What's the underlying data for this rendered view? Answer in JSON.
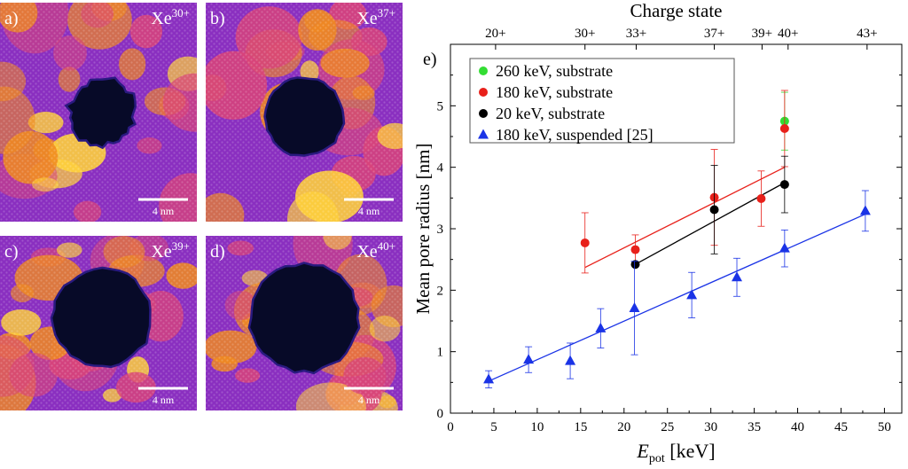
{
  "panels": [
    {
      "label": "a)",
      "ion": "Xe",
      "charge": "30+",
      "scalebar": "4 nm",
      "hole": "rough"
    },
    {
      "label": "b)",
      "ion": "Xe",
      "charge": "37+",
      "scalebar": "4 nm",
      "hole": "round"
    },
    {
      "label": "c)",
      "ion": "Xe",
      "charge": "39+",
      "scalebar": "4 nm",
      "hole": "large"
    },
    {
      "label": "d)",
      "ion": "Xe",
      "charge": "40+",
      "scalebar": "4 nm",
      "hole": "large"
    }
  ],
  "colors": {
    "panel_bg": "#8a2fc0",
    "panel_warm": "#f08a20",
    "panel_hot": "#ffd23a",
    "panel_mid": "#d8447a",
    "hole": "#070a28",
    "green": "#33dd33",
    "red": "#e8201a",
    "black": "#000000",
    "blue": "#1a33e6"
  },
  "chart_data": {
    "type": "scatter",
    "panel_label": "e)",
    "xlabel_main": "E",
    "xlabel_sub": "pot",
    "xlabel_unit": " [keV]",
    "ylabel": "Mean pore radius [nm]",
    "top_axis_title": "Charge state",
    "xlim": [
      0,
      52
    ],
    "ylim": [
      0,
      6
    ],
    "xticks": [
      0,
      5,
      10,
      15,
      20,
      25,
      30,
      35,
      40,
      45,
      50
    ],
    "yticks": [
      0,
      1,
      2,
      3,
      4,
      5
    ],
    "top_ticks": [
      {
        "x": 5.2,
        "label": "20+"
      },
      {
        "x": 15.5,
        "label": "30+"
      },
      {
        "x": 21.4,
        "label": "33+"
      },
      {
        "x": 30.4,
        "label": "37+"
      },
      {
        "x": 35.9,
        "label": "39+"
      },
      {
        "x": 38.9,
        "label": "40+"
      },
      {
        "x": 48.0,
        "label": "43+"
      }
    ],
    "legend_position": "top-left",
    "series": [
      {
        "name": "260 keV, substrate",
        "color_key": "green",
        "marker": "circle",
        "points": [
          {
            "x": 38.5,
            "y": 4.75,
            "err": 0.47
          }
        ]
      },
      {
        "name": "180 keV, substrate",
        "color_key": "red",
        "marker": "circle",
        "points": [
          {
            "x": 15.5,
            "y": 2.77,
            "err": 0.49
          },
          {
            "x": 21.3,
            "y": 2.66,
            "err": 0.24
          },
          {
            "x": 30.4,
            "y": 3.51,
            "err": 0.78
          },
          {
            "x": 35.8,
            "y": 3.49,
            "err": 0.45
          },
          {
            "x": 38.5,
            "y": 4.63,
            "err": 0.62
          }
        ],
        "fit": [
          [
            15.5,
            2.37
          ],
          [
            38.5,
            4.0
          ]
        ]
      },
      {
        "name": "20 keV, substrate",
        "color_key": "black",
        "marker": "circle",
        "points": [
          {
            "x": 21.3,
            "y": 2.42,
            "err": 0.0
          },
          {
            "x": 30.4,
            "y": 3.31,
            "err": 0.72
          },
          {
            "x": 38.5,
            "y": 3.72,
            "err": 0.46
          }
        ],
        "fit": [
          [
            21.3,
            2.42
          ],
          [
            38.5,
            3.75
          ]
        ]
      },
      {
        "name": "180 keV, suspended [25]",
        "color_key": "blue",
        "marker": "triangle",
        "points": [
          {
            "x": 4.4,
            "y": 0.55,
            "err": 0.14
          },
          {
            "x": 9.0,
            "y": 0.87,
            "err": 0.21
          },
          {
            "x": 13.8,
            "y": 0.85,
            "err": 0.29
          },
          {
            "x": 17.3,
            "y": 1.38,
            "err": 0.32
          },
          {
            "x": 21.2,
            "y": 1.71,
            "err": 0.76
          },
          {
            "x": 27.8,
            "y": 1.92,
            "err": 0.37
          },
          {
            "x": 33.0,
            "y": 2.21,
            "err": 0.31
          },
          {
            "x": 38.5,
            "y": 2.68,
            "err": 0.3
          },
          {
            "x": 47.8,
            "y": 3.29,
            "err": 0.33
          }
        ],
        "fit": [
          [
            4.4,
            0.52
          ],
          [
            48.0,
            3.25
          ]
        ]
      }
    ]
  }
}
